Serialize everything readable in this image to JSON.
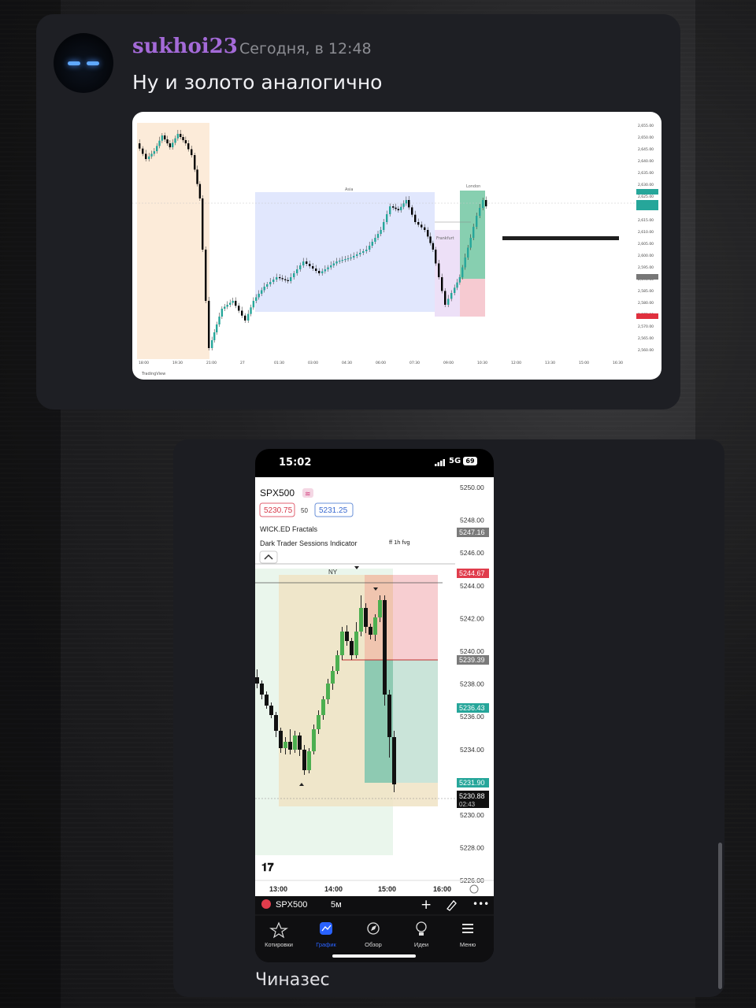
{
  "message1": {
    "username": "sukhoi23",
    "timestamp": "Сегодня, в 12:48",
    "text": "Ну и золото аналогично"
  },
  "chart1": {
    "watermark": "TradingView",
    "price_labels": [
      "2,655.00",
      "2,650.00",
      "2,645.00",
      "2,640.00",
      "2,635.00",
      "2,630.00",
      "2,625.00",
      "2,620.00",
      "2,615.00",
      "2,610.00",
      "2,605.00",
      "2,600.00",
      "2,595.00",
      "2,590.00",
      "2,585.00",
      "2,580.00",
      "2,575.00",
      "2,570.00",
      "2,565.00",
      "2,560.00"
    ],
    "time_labels": [
      "18:00",
      "19:30",
      "21:00",
      "27",
      "01:30",
      "03:00",
      "04:30",
      "06:00",
      "07:30",
      "09:00",
      "10:30",
      "12:00",
      "13:30",
      "15:00",
      "16:30"
    ],
    "session_labels": [
      "Asia",
      "Frankfurt",
      "London"
    ],
    "colors": {
      "up": "#26a69a",
      "down": "#000000",
      "asia": "#c9d3fb",
      "pre": "#fbe6cf",
      "frankfurt": "#e8d8f5",
      "tp": "#5fbf95",
      "sl": "#f3b8c2"
    }
  },
  "message2": {
    "caption": "Чиназес",
    "phone": {
      "time": "15:02",
      "network": "5G",
      "battery": "69",
      "symbol": "SPX500",
      "bid": "5230.75",
      "spread": "50",
      "ask": "5231.25",
      "indicator1": "WICK.ED Fractals",
      "indicator2": "Dark Trader Sessions Indicator",
      "indicator2_extra": "ff 1h fvg",
      "session_label": "NY",
      "price_axis": [
        "5250.00",
        "5248.00",
        "5246.00",
        "5244.00",
        "5242.00",
        "5240.00",
        "5238.00",
        "5236.00",
        "5234.00",
        "5232.00",
        "5230.00",
        "5228.00",
        "5226.00"
      ],
      "price_tags": {
        "p1": "5247.16",
        "p2": "5244.67",
        "p3": "5239.39",
        "p4": "5236.43",
        "p5": "5231.90",
        "current": "5230.88",
        "countdown": "02:43"
      },
      "time_axis": [
        "13:00",
        "14:00",
        "15:00",
        "16:00"
      ],
      "toolbar_symbol": "SPX500",
      "toolbar_interval": "5м",
      "nav": [
        "Котировки",
        "График",
        "Обзор",
        "Идеи",
        "Меню"
      ],
      "active_nav": 1
    }
  }
}
